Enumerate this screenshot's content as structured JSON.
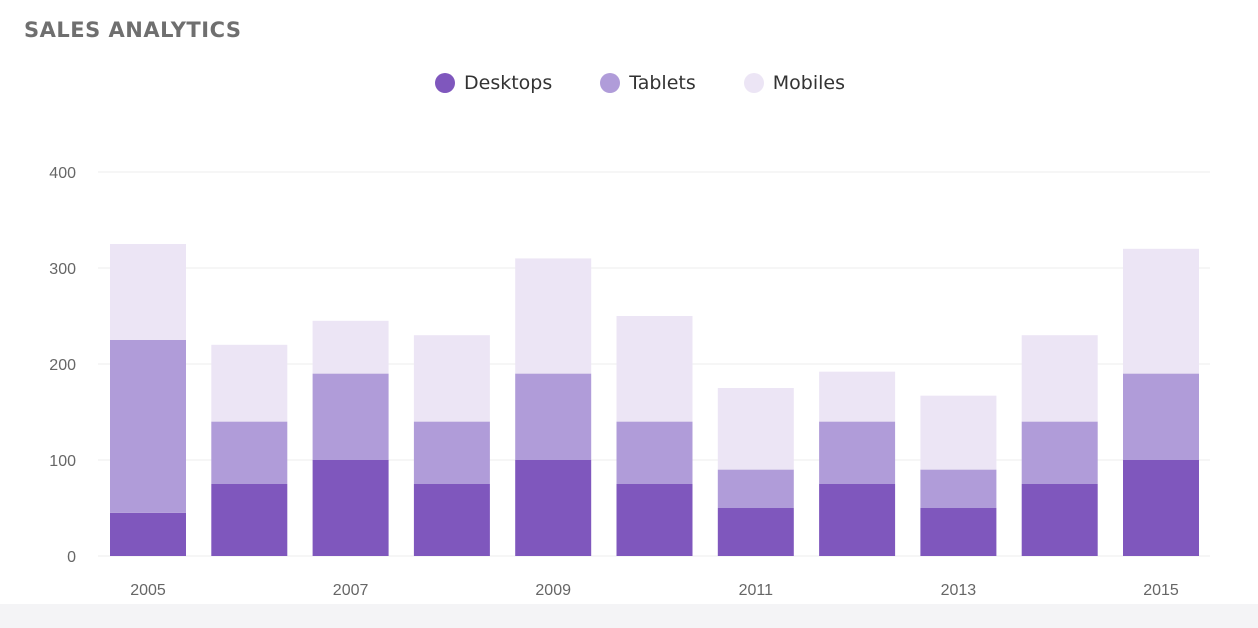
{
  "card": {
    "title": "SALES ANALYTICS"
  },
  "colors": {
    "desktops": "#7f57bd",
    "tablets": "#b09cd9",
    "mobiles": "#ece5f5",
    "grid": "#eeeeee"
  },
  "chart_data": {
    "type": "bar",
    "stacked": true,
    "title": "",
    "xlabel": "",
    "ylabel": "",
    "ylim": [
      0,
      400
    ],
    "yticks": [
      0,
      100,
      200,
      300,
      400
    ],
    "grid": true,
    "legend_position": "top-center",
    "categories": [
      "2005",
      "2006",
      "2007",
      "2008",
      "2009",
      "2010",
      "2011",
      "2012",
      "2013",
      "2014",
      "2015"
    ],
    "xtick_labels": [
      "2005",
      "",
      "2007",
      "",
      "2009",
      "",
      "2011",
      "",
      "2013",
      "",
      "2015"
    ],
    "series": [
      {
        "name": "Desktops",
        "values": [
          45,
          75,
          100,
          75,
          100,
          75,
          50,
          75,
          50,
          75,
          100
        ]
      },
      {
        "name": "Tablets",
        "values": [
          180,
          65,
          90,
          65,
          90,
          65,
          40,
          65,
          40,
          65,
          90
        ]
      },
      {
        "name": "Mobiles",
        "values": [
          100,
          80,
          55,
          90,
          120,
          110,
          85,
          52,
          77,
          90,
          130
        ]
      }
    ]
  }
}
